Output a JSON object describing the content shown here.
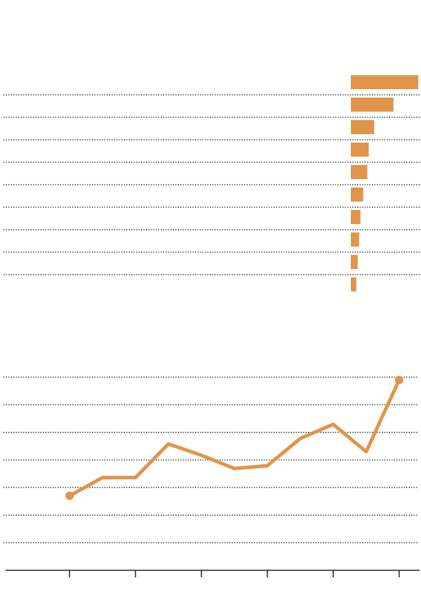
{
  "chart_data": [
    {
      "type": "bar",
      "orientation": "horizontal",
      "categories": [
        null,
        null,
        null,
        null,
        null,
        null,
        null,
        null,
        null,
        null
      ],
      "values": [
        98,
        62,
        34,
        26,
        24,
        18,
        14,
        12,
        10,
        8
      ],
      "color": "#e0954a",
      "xlim": [
        0,
        100
      ]
    },
    {
      "type": "line",
      "x": [
        0,
        1,
        2,
        3,
        4,
        5,
        6,
        7,
        8,
        9,
        10
      ],
      "values": [
        2.7,
        3.36,
        3.36,
        4.58,
        4.17,
        3.69,
        3.79,
        4.78,
        5.29,
        4.3,
        6.9
      ],
      "color": "#e0954a",
      "xlim": [
        -1.94,
        10.62
      ],
      "xticks": [
        0,
        2,
        4,
        6,
        8,
        10
      ],
      "ylim": [
        0,
        7
      ],
      "yticks": [
        1,
        2,
        3,
        4,
        5,
        6,
        7
      ],
      "grid": true
    }
  ]
}
